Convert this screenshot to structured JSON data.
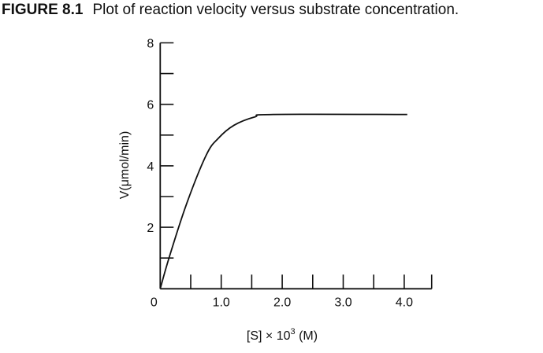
{
  "chart_data": {
    "type": "line",
    "figure_label": "FIGURE 8.1",
    "title": "Plot of reaction velocity versus substrate concentration.",
    "xlabel_main": "[S] × 10",
    "xlabel_sup": "3",
    "xlabel_unit": " (M)",
    "ylabel": "V(μmol/min)",
    "xlim": [
      0,
      4.45
    ],
    "ylim": [
      0,
      8
    ],
    "x_ticks": [
      0.5,
      1.0,
      1.5,
      2.0,
      2.5,
      3.0,
      3.5,
      4.0
    ],
    "x_tick_labels": [
      {
        "value": 0,
        "label": "0"
      },
      {
        "value": 1.0,
        "label": "1.0"
      },
      {
        "value": 2.0,
        "label": "2.0"
      },
      {
        "value": 3.0,
        "label": "3.0"
      },
      {
        "value": 4.0,
        "label": "4.0"
      }
    ],
    "y_ticks": [
      1,
      2,
      3,
      4,
      5,
      6,
      7,
      8
    ],
    "y_tick_labels": [
      {
        "value": 2,
        "label": "2"
      },
      {
        "value": 4,
        "label": "4"
      },
      {
        "value": 6,
        "label": "6"
      },
      {
        "value": 8,
        "label": "8"
      }
    ],
    "grid": false,
    "series": [
      {
        "name": "velocity",
        "x": [
          0,
          0.15,
          0.43,
          0.75,
          0.95,
          1.21,
          1.55,
          1.85,
          4.05
        ],
        "y": [
          0,
          1.04,
          2.75,
          4.33,
          4.89,
          5.32,
          5.59,
          5.67,
          5.67
        ]
      }
    ]
  }
}
